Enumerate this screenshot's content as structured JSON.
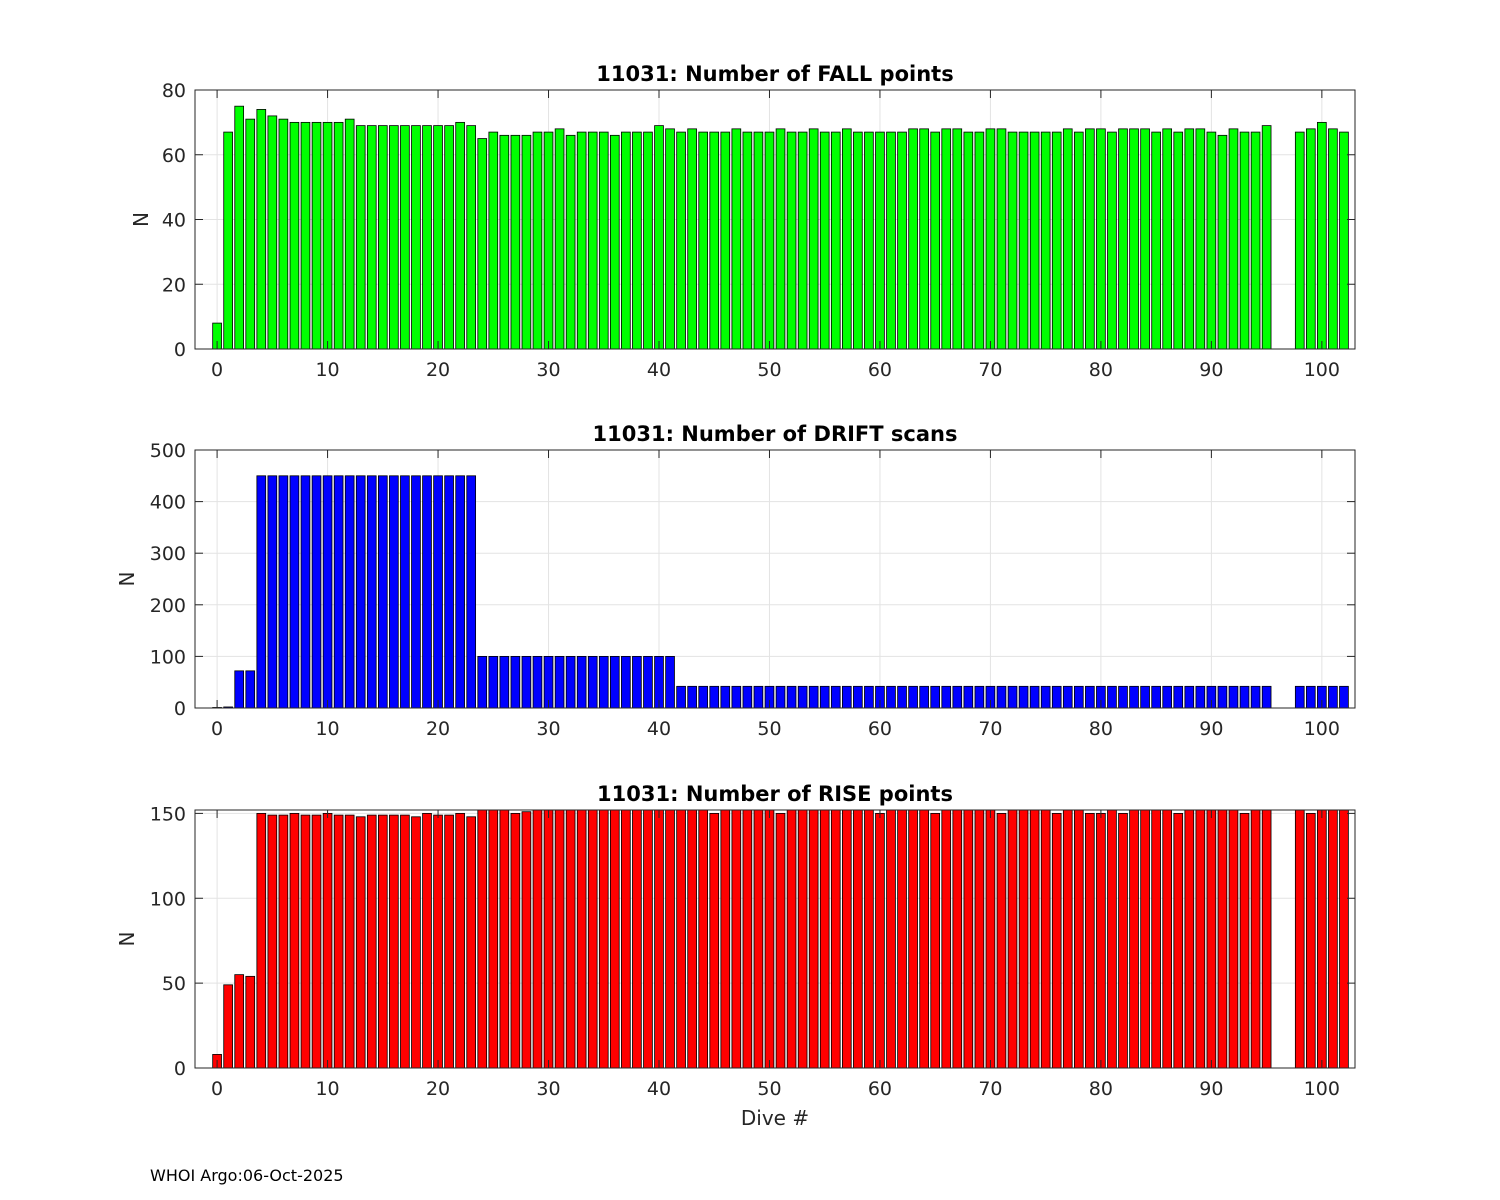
{
  "figure": {
    "footer": "WHOI Argo:06-Oct-2025",
    "xlabel": "Dive #"
  },
  "chart_data": [
    {
      "type": "bar",
      "title": "11031: Number of FALL points",
      "ylabel": "N",
      "xlabel": "",
      "xlim": [
        -2,
        103
      ],
      "ylim": [
        0,
        80
      ],
      "xticks": [
        0,
        10,
        20,
        30,
        40,
        50,
        60,
        70,
        80,
        90,
        100
      ],
      "yticks": [
        0,
        20,
        40,
        60,
        80
      ],
      "grid": true,
      "bar_color": "#00ff00",
      "x": [
        0,
        1,
        2,
        3,
        4,
        5,
        6,
        7,
        8,
        9,
        10,
        11,
        12,
        13,
        14,
        15,
        16,
        17,
        18,
        19,
        20,
        21,
        22,
        23,
        24,
        25,
        26,
        27,
        28,
        29,
        30,
        31,
        32,
        33,
        34,
        35,
        36,
        37,
        38,
        39,
        40,
        41,
        42,
        43,
        44,
        45,
        46,
        47,
        48,
        49,
        50,
        51,
        52,
        53,
        54,
        55,
        56,
        57,
        58,
        59,
        60,
        61,
        62,
        63,
        64,
        65,
        66,
        67,
        68,
        69,
        70,
        71,
        72,
        73,
        74,
        75,
        76,
        77,
        78,
        79,
        80,
        81,
        82,
        83,
        84,
        85,
        86,
        87,
        88,
        89,
        90,
        91,
        92,
        93,
        94,
        95,
        98,
        99,
        100,
        101,
        102
      ],
      "values": [
        8,
        67,
        75,
        71,
        74,
        72,
        71,
        70,
        70,
        70,
        70,
        70,
        71,
        69,
        69,
        69,
        69,
        69,
        69,
        69,
        69,
        69,
        70,
        69,
        65,
        67,
        66,
        66,
        66,
        67,
        67,
        68,
        66,
        67,
        67,
        67,
        66,
        67,
        67,
        67,
        69,
        68,
        67,
        68,
        67,
        67,
        67,
        68,
        67,
        67,
        67,
        68,
        67,
        67,
        68,
        67,
        67,
        68,
        67,
        67,
        67,
        67,
        67,
        68,
        68,
        67,
        68,
        68,
        67,
        67,
        68,
        68,
        67,
        67,
        67,
        67,
        67,
        68,
        67,
        68,
        68,
        67,
        68,
        68,
        68,
        67,
        68,
        67,
        68,
        68,
        67,
        66,
        68,
        67,
        67,
        69,
        67,
        68,
        70,
        68,
        67
      ]
    },
    {
      "type": "bar",
      "title": "11031: Number of DRIFT scans",
      "ylabel": "N",
      "xlabel": "",
      "xlim": [
        -2,
        103
      ],
      "ylim": [
        0,
        500
      ],
      "xticks": [
        0,
        10,
        20,
        30,
        40,
        50,
        60,
        70,
        80,
        90,
        100
      ],
      "yticks": [
        0,
        100,
        200,
        300,
        400,
        500
      ],
      "grid": true,
      "bar_color": "#0000ff",
      "x": [
        0,
        1,
        2,
        3,
        4,
        5,
        6,
        7,
        8,
        9,
        10,
        11,
        12,
        13,
        14,
        15,
        16,
        17,
        18,
        19,
        20,
        21,
        22,
        23,
        24,
        25,
        26,
        27,
        28,
        29,
        30,
        31,
        32,
        33,
        34,
        35,
        36,
        37,
        38,
        39,
        40,
        41,
        42,
        43,
        44,
        45,
        46,
        47,
        48,
        49,
        50,
        51,
        52,
        53,
        54,
        55,
        56,
        57,
        58,
        59,
        60,
        61,
        62,
        63,
        64,
        65,
        66,
        67,
        68,
        69,
        70,
        71,
        72,
        73,
        74,
        75,
        76,
        77,
        78,
        79,
        80,
        81,
        82,
        83,
        84,
        85,
        86,
        87,
        88,
        89,
        90,
        91,
        92,
        93,
        94,
        95,
        98,
        99,
        100,
        101,
        102
      ],
      "values": [
        1,
        2,
        72,
        72,
        450,
        450,
        450,
        450,
        450,
        450,
        450,
        450,
        450,
        450,
        450,
        450,
        450,
        450,
        450,
        450,
        450,
        450,
        450,
        450,
        100,
        100,
        100,
        100,
        100,
        100,
        100,
        100,
        100,
        100,
        100,
        100,
        100,
        100,
        100,
        100,
        100,
        100,
        42,
        42,
        42,
        42,
        42,
        42,
        42,
        42,
        42,
        42,
        42,
        42,
        42,
        42,
        42,
        42,
        42,
        42,
        42,
        42,
        42,
        42,
        42,
        42,
        42,
        42,
        42,
        42,
        42,
        42,
        42,
        42,
        42,
        42,
        42,
        42,
        42,
        42,
        42,
        42,
        42,
        42,
        42,
        42,
        42,
        42,
        42,
        42,
        42,
        42,
        42,
        42,
        42,
        42,
        42,
        42,
        42,
        42,
        42
      ]
    },
    {
      "type": "bar",
      "title": "11031: Number of RISE points",
      "ylabel": "N",
      "xlabel": "Dive #",
      "xlim": [
        -2,
        103
      ],
      "ylim": [
        0,
        152
      ],
      "xticks": [
        0,
        10,
        20,
        30,
        40,
        50,
        60,
        70,
        80,
        90,
        100
      ],
      "yticks": [
        0,
        50,
        100,
        150
      ],
      "grid": true,
      "bar_color": "#ff0000",
      "x": [
        0,
        1,
        2,
        3,
        4,
        5,
        6,
        7,
        8,
        9,
        10,
        11,
        12,
        13,
        14,
        15,
        16,
        17,
        18,
        19,
        20,
        21,
        22,
        23,
        24,
        25,
        26,
        27,
        28,
        29,
        30,
        31,
        32,
        33,
        34,
        35,
        36,
        37,
        38,
        39,
        40,
        41,
        42,
        43,
        44,
        45,
        46,
        47,
        48,
        49,
        50,
        51,
        52,
        53,
        54,
        55,
        56,
        57,
        58,
        59,
        60,
        61,
        62,
        63,
        64,
        65,
        66,
        67,
        68,
        69,
        70,
        71,
        72,
        73,
        74,
        75,
        76,
        77,
        78,
        79,
        80,
        81,
        82,
        83,
        84,
        85,
        86,
        87,
        88,
        89,
        90,
        91,
        92,
        93,
        94,
        95,
        98,
        99,
        100,
        101,
        102
      ],
      "values": [
        8,
        49,
        55,
        54,
        150,
        149,
        149,
        150,
        149,
        149,
        150,
        149,
        149,
        148,
        149,
        149,
        149,
        149,
        148,
        150,
        149,
        149,
        150,
        148,
        152,
        152,
        152,
        150,
        151,
        152,
        152,
        152,
        152,
        152,
        152,
        152,
        152,
        152,
        152,
        152,
        152,
        152,
        152,
        152,
        152,
        150,
        152,
        152,
        152,
        152,
        152,
        150,
        152,
        152,
        152,
        152,
        152,
        152,
        152,
        152,
        150,
        152,
        152,
        152,
        152,
        150,
        152,
        152,
        152,
        152,
        152,
        150,
        152,
        152,
        152,
        152,
        150,
        152,
        152,
        150,
        150,
        152,
        150,
        152,
        152,
        152,
        152,
        150,
        152,
        152,
        152,
        152,
        152,
        150,
        152,
        152,
        152,
        150,
        152,
        152,
        152
      ]
    }
  ]
}
